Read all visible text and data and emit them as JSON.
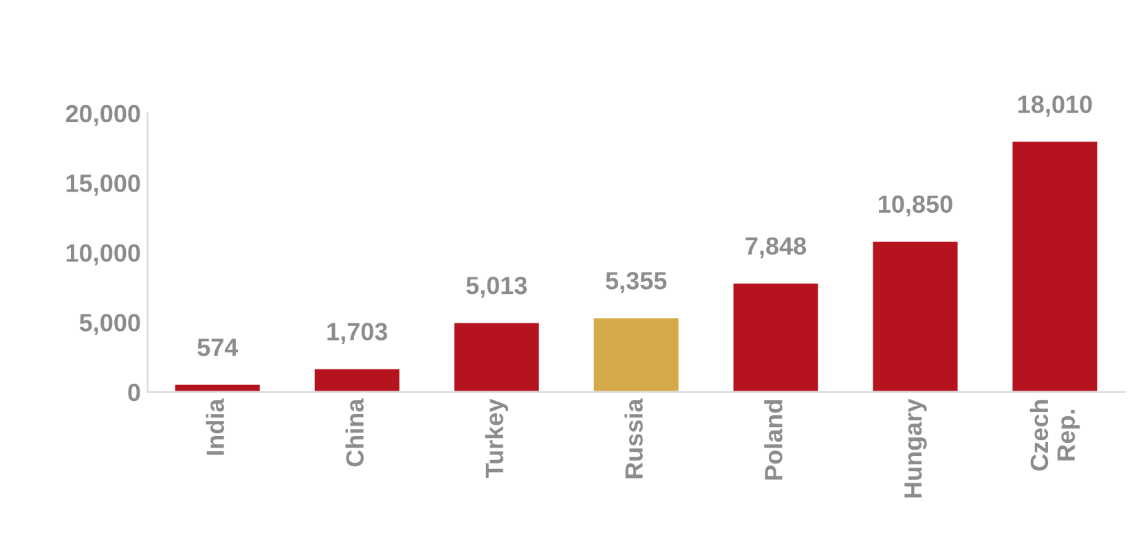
{
  "chart_data": {
    "type": "bar",
    "categories": [
      "India",
      "China",
      "Turkey",
      "Russia",
      "Poland",
      "Hungary",
      "Czech\nRep."
    ],
    "values": [
      574,
      1703,
      5013,
      5355,
      7848,
      10850,
      18010
    ],
    "colors": [
      "#b5141e",
      "#b5141e",
      "#b5141e",
      "#d4a947",
      "#b5141e",
      "#b5141e",
      "#b5141e"
    ],
    "value_labels": [
      "574",
      "1,703",
      "5,013",
      "5,355",
      "7,848",
      "10,850",
      "18,010"
    ],
    "ylim": [
      0,
      20000
    ],
    "yticks": [
      0,
      {
        "value": 5000,
        "label": "5,000"
      },
      {
        "value": 10000,
        "label": "10,000"
      },
      {
        "value": 15000,
        "label": "15,000"
      },
      {
        "value": 20000,
        "label": "20,000"
      }
    ],
    "grid": false,
    "legend": false
  }
}
